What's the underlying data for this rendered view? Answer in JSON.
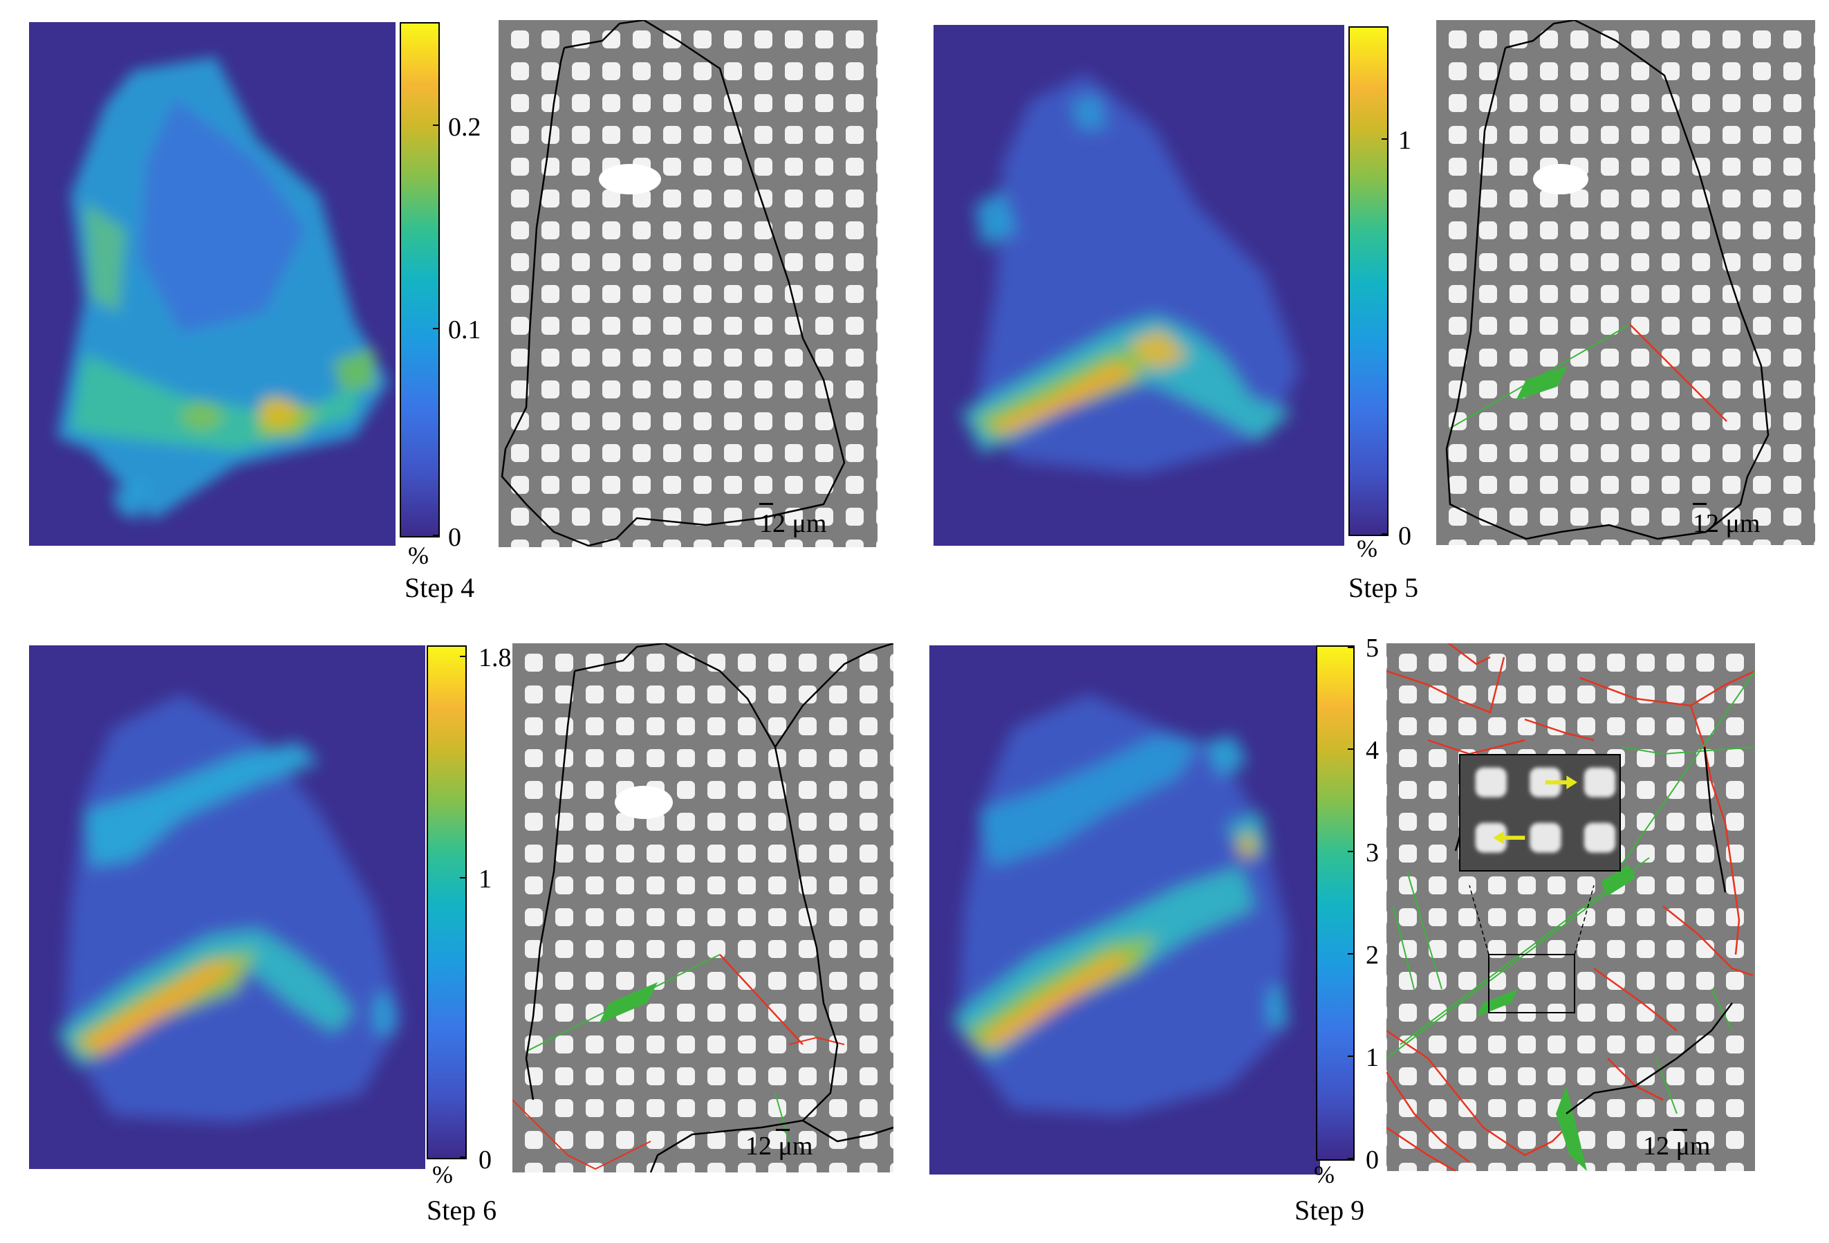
{
  "figure": {
    "panels": [
      {
        "id": "step4",
        "step_label": "Step 4",
        "colorbar": {
          "unit": "%",
          "min": 0,
          "max": 0.25,
          "ticks": [
            "0",
            "0.1",
            "0.2"
          ]
        },
        "scale_label": "12 μm"
      },
      {
        "id": "step5",
        "step_label": "Step 5",
        "colorbar": {
          "unit": "%",
          "min": 0,
          "max": 1.3,
          "ticks": [
            "0",
            "1"
          ]
        },
        "scale_label": "12 μm"
      },
      {
        "id": "step6",
        "step_label": "Step 6",
        "colorbar": {
          "unit": "%",
          "min": 0,
          "max": 1.8,
          "ticks": [
            "0",
            "1",
            "1.8"
          ]
        },
        "scale_label": "12 μm"
      },
      {
        "id": "step9",
        "step_label": "Step 9",
        "colorbar": {
          "unit": "%",
          "min": 0,
          "max": 5,
          "ticks": [
            "0",
            "1",
            "2",
            "3",
            "4",
            "5"
          ]
        },
        "scale_label": "12 μm"
      }
    ],
    "colors": {
      "heat_background": "#3b2f8f",
      "sem_background": "#7d7d7d",
      "sem_square": "#f2f2f2",
      "boundary": "#000000",
      "slip_red": "#e8321e",
      "slip_green": "#3cb43c",
      "arrow_yellow": "#e6e61e"
    }
  }
}
